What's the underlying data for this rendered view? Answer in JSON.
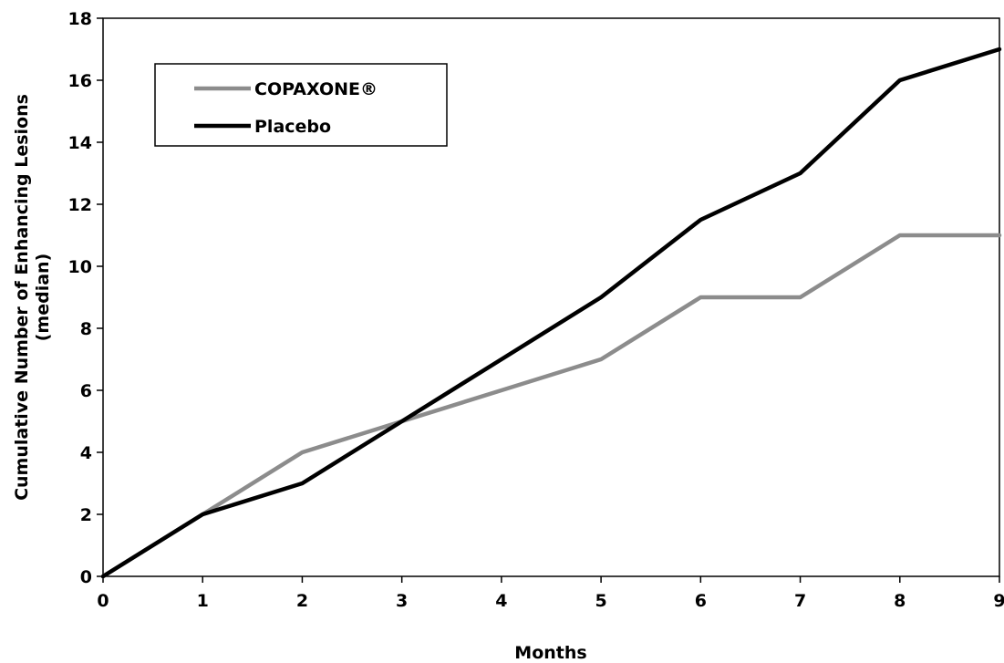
{
  "chart_data": {
    "type": "line",
    "xlabel": "Months",
    "ylabel": [
      "Cumulative Number of Enhancing Lesions",
      "(median)"
    ],
    "x": [
      0,
      1,
      2,
      3,
      4,
      5,
      6,
      7,
      8,
      9
    ],
    "xlim": [
      0,
      9
    ],
    "ylim": [
      0,
      18
    ],
    "xticks": [
      "0",
      "1",
      "2",
      "3",
      "4",
      "5",
      "6",
      "7",
      "8",
      "9"
    ],
    "yticks": [
      "0",
      "2",
      "4",
      "6",
      "8",
      "10",
      "12",
      "14",
      "16",
      "18"
    ],
    "grid": false,
    "legend_position": "top-left",
    "series": [
      {
        "name": "COPAXONE®",
        "color": "#8c8c8c",
        "values": [
          0,
          2,
          4,
          5,
          6,
          7,
          9,
          9,
          11,
          11
        ]
      },
      {
        "name": "Placebo",
        "color": "#000000",
        "values": [
          0,
          2,
          3,
          5,
          7,
          9,
          11.5,
          13,
          16,
          17
        ]
      }
    ]
  }
}
